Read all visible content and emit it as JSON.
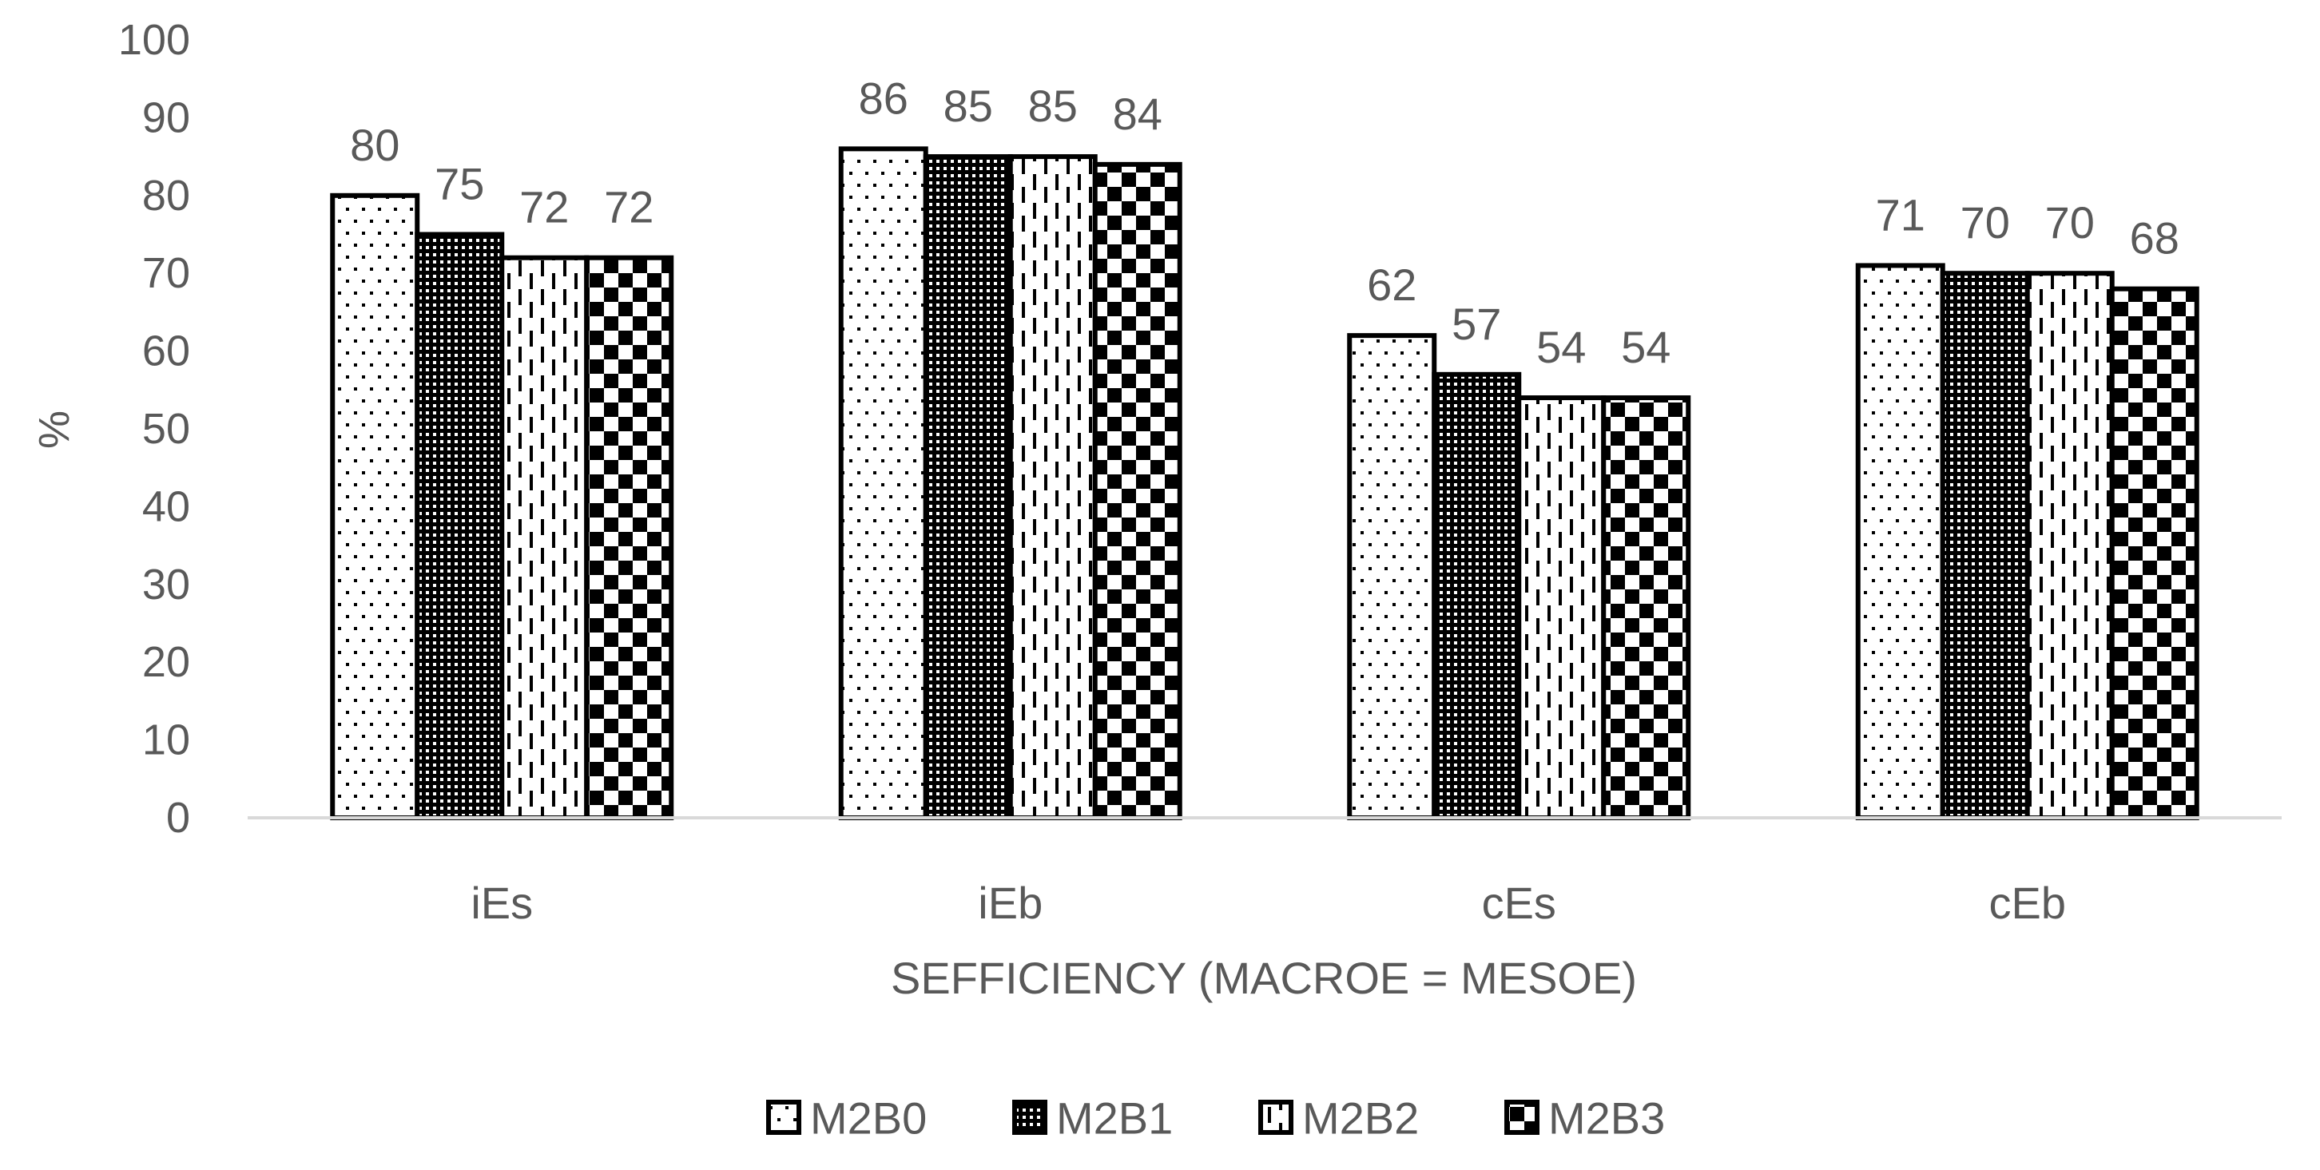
{
  "chart_data": {
    "type": "bar",
    "title": "",
    "xlabel": "SEFFICIENCY (MACROE = MESOE)",
    "ylabel": "%",
    "ylim": [
      0,
      100
    ],
    "yticks": [
      0,
      10,
      20,
      30,
      40,
      50,
      60,
      70,
      80,
      90,
      100
    ],
    "grid": false,
    "legend_position": "bottom",
    "categories": [
      "iEs",
      "iEb",
      "cEs",
      "cEb"
    ],
    "series": [
      {
        "name": "M2B0",
        "values": [
          80,
          86,
          62,
          71
        ],
        "pattern": "sparse-dots"
      },
      {
        "name": "M2B1",
        "values": [
          75,
          85,
          57,
          70
        ],
        "pattern": "dense-dots"
      },
      {
        "name": "M2B2",
        "values": [
          72,
          85,
          54,
          70
        ],
        "pattern": "vertical-dashes"
      },
      {
        "name": "M2B3",
        "values": [
          72,
          84,
          54,
          68
        ],
        "pattern": "checkerboard"
      }
    ],
    "colors": {
      "text": "#595959",
      "axis": "#d9d9d9",
      "bar_outline": "#000000",
      "bar_fill": "#ffffff"
    }
  }
}
